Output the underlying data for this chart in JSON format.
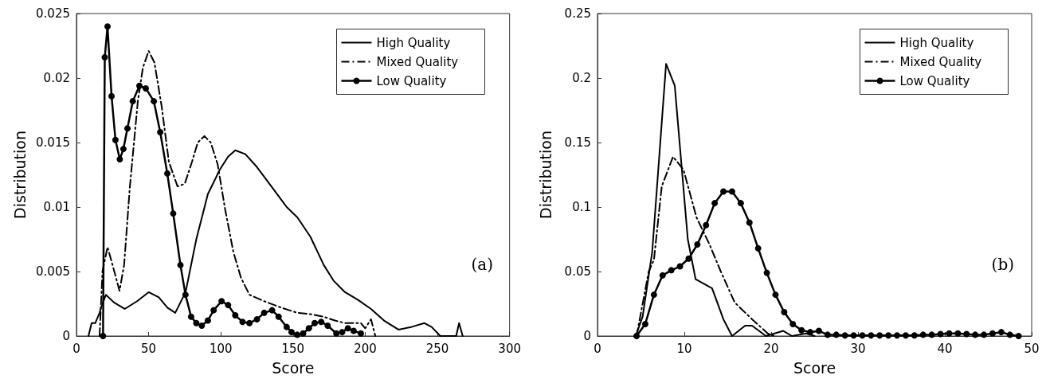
{
  "chart_data": [
    {
      "type": "line",
      "xlabel": "Score",
      "ylabel": "Distribution",
      "xlim": [
        0,
        300
      ],
      "xticks": [
        0,
        50,
        100,
        150,
        200,
        250,
        300
      ],
      "ylim": [
        0,
        0.025
      ],
      "yticks": [
        0,
        0.005,
        0.01,
        0.015,
        0.02,
        0.025
      ],
      "grid": false,
      "legend": "top right",
      "annotations": [
        "(a)"
      ],
      "series": [
        {
          "name": "High Quality",
          "color": "#000000",
          "marker": "none",
          "line_style": "solid",
          "x": [
            8.3,
            10.5,
            13,
            16,
            17,
            20.4,
            26,
            33.4,
            42,
            50,
            57,
            63,
            68.4,
            75.6,
            83,
            91,
            99.3,
            105,
            110,
            117,
            125,
            135,
            145.6,
            153,
            162,
            171.3,
            178,
            186,
            195,
            204,
            213,
            223,
            232,
            241,
            246,
            252,
            263,
            265,
            267.5
          ],
          "values": [
            0,
            0.001,
            0.001,
            0.0018,
            0.0022,
            0.0032,
            0.0026,
            0.0021,
            0.0027,
            0.0034,
            0.003,
            0.0022,
            0.0018,
            0.0034,
            0.0075,
            0.011,
            0.0129,
            0.0139,
            0.0144,
            0.0141,
            0.0131,
            0.0116,
            0.01,
            0.0092,
            0.0077,
            0.0055,
            0.0043,
            0.0034,
            0.0028,
            0.0021,
            0.0012,
            0.0005,
            0.0007,
            0.001,
            0.0007,
            0,
            0,
            0.001,
            0
          ]
        },
        {
          "name": "Mixed Quality",
          "color": "#000000",
          "marker": "none",
          "line_style": "dashed",
          "x": [
            16,
            18,
            21.5,
            25,
            29.8,
            33,
            37,
            42.5,
            46,
            50,
            54,
            59,
            64,
            70,
            75,
            80,
            84,
            88.6,
            93,
            97.8,
            103,
            108.7,
            114,
            119.8,
            130,
            141.8,
            152.9,
            162,
            171,
            179,
            186,
            192,
            197,
            200,
            204,
            207
          ],
          "values": [
            0,
            0.005,
            0.0069,
            0.0055,
            0.0035,
            0.0055,
            0.0116,
            0.0182,
            0.0208,
            0.0221,
            0.0212,
            0.0178,
            0.0135,
            0.0116,
            0.0118,
            0.0135,
            0.015,
            0.0155,
            0.015,
            0.0133,
            0.0098,
            0.0065,
            0.0045,
            0.0032,
            0.0027,
            0.0022,
            0.0018,
            0.0017,
            0.0015,
            0.0012,
            0.001,
            0.001,
            0.001,
            0.0006,
            0.0013,
            0
          ]
        },
        {
          "name": "Low Quality",
          "color": "#000000",
          "marker": "circle",
          "line_style": "solid",
          "x": [
            18.4,
            19.6,
            21.5,
            24.3,
            27,
            30,
            32.5,
            35.3,
            39,
            43.6,
            48,
            53.6,
            58,
            62.9,
            67,
            72,
            75.5,
            79.4,
            83,
            86.8,
            91,
            95,
            100.5,
            105,
            110,
            115,
            119.8,
            125,
            130,
            135.5,
            140,
            145.6,
            149,
            152.9,
            157,
            161,
            165,
            169.5,
            174,
            180,
            184,
            188,
            192,
            197
          ],
          "values": [
            0,
            0.0216,
            0.024,
            0.0186,
            0.0152,
            0.0137,
            0.0145,
            0.0161,
            0.0182,
            0.0194,
            0.0192,
            0.0182,
            0.0158,
            0.0126,
            0.0095,
            0.0055,
            0.0032,
            0.0015,
            0.001,
            0.0008,
            0.0012,
            0.002,
            0.0027,
            0.0024,
            0.0016,
            0.0011,
            0.001,
            0.0013,
            0.0018,
            0.002,
            0.0015,
            0.0007,
            0.0003,
            0.0001,
            0.0002,
            0.0006,
            0.001,
            0.0011,
            0.0008,
            0.0002,
            0.0003,
            0.0006,
            0.0004,
            0.0002
          ]
        }
      ]
    },
    {
      "type": "line",
      "xlabel": "Score",
      "ylabel": "Distribution",
      "xlim": [
        0,
        50
      ],
      "xticks": [
        0,
        10,
        20,
        30,
        40,
        50
      ],
      "ylim": [
        0,
        0.25
      ],
      "yticks": [
        0,
        0.05,
        0.1,
        0.15,
        0.2,
        0.25
      ],
      "grid": false,
      "legend": "top right",
      "annotations": [
        "(b)"
      ],
      "series": [
        {
          "name": "High Quality",
          "color": "#000000",
          "marker": "none",
          "line_style": "solid",
          "x": [
            4.4,
            5.2,
            6.3,
            7.9,
            8.9,
            10.4,
            11.3,
            13.2,
            14.5,
            15.5,
            17,
            17.8,
            19.4,
            21.4,
            22.4,
            24,
            25
          ],
          "values": [
            0,
            0.015,
            0.065,
            0.211,
            0.194,
            0.075,
            0.044,
            0.037,
            0.013,
            0,
            0.008,
            0.008,
            0,
            0.004,
            0,
            0.002,
            0
          ]
        },
        {
          "name": "Mixed Quality",
          "color": "#000000",
          "marker": "none",
          "line_style": "dashed",
          "x": [
            4.5,
            5.9,
            6.5,
            7.4,
            8.7,
            9.9,
            11.4,
            12.9,
            14.2,
            15.8,
            17.8,
            19.6,
            20.4
          ],
          "values": [
            0,
            0.05,
            0.059,
            0.116,
            0.139,
            0.129,
            0.092,
            0.071,
            0.05,
            0.026,
            0.013,
            0.002,
            0
          ]
        },
        {
          "name": "Low Quality",
          "color": "#000000",
          "marker": "circle",
          "line_style": "solid",
          "x": [
            4.5,
            5.5,
            6.5,
            7.5,
            8.5,
            9.5,
            10.5,
            11.5,
            12.5,
            13.5,
            14.5,
            15.5,
            16.5,
            17.5,
            18.5,
            19.5,
            20.5,
            21.5,
            22.5,
            23.5,
            24.5,
            25.5,
            26.5,
            27.5,
            28.5,
            29.5,
            30.5,
            31.5,
            32.5,
            33.5,
            34.5,
            35.5,
            36.5,
            37.5,
            38.5,
            39.5,
            40.5,
            41.5,
            42.5,
            43.5,
            44.5,
            45.5,
            46.5,
            47.5,
            48.5
          ],
          "values": [
            0,
            0.0093,
            0.032,
            0.047,
            0.051,
            0.054,
            0.06,
            0.071,
            0.086,
            0.103,
            0.112,
            0.112,
            0.103,
            0.088,
            0.068,
            0.049,
            0.032,
            0.0185,
            0.0093,
            0.0045,
            0.003,
            0.004,
            0.001,
            0.001,
            0.0005,
            0.0005,
            0.0005,
            0.0005,
            0.0005,
            0.0005,
            0.0005,
            0.0005,
            0.0005,
            0.001,
            0.001,
            0.0015,
            0.002,
            0.002,
            0.0015,
            0.001,
            0.001,
            0.002,
            0.003,
            0.001,
            0
          ]
        }
      ]
    }
  ]
}
